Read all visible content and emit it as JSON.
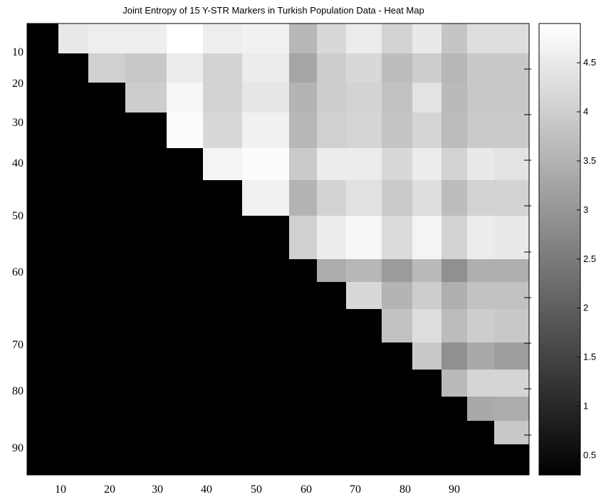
{
  "chart_data": {
    "type": "heatmap",
    "title": "Joint Entropy of 15 Y-STR Markers in Turkish Population Data - Heat Map",
    "xlabel": "",
    "ylabel": "",
    "colormap": "gray",
    "background_color": "#000000",
    "x_ticks": [
      "10",
      "20",
      "30",
      "40",
      "50",
      "60",
      "70",
      "80",
      "90"
    ],
    "y_ticks": [
      "10",
      "20",
      "30",
      "40",
      "50",
      "60",
      "70",
      "80",
      "90"
    ],
    "colorbar": {
      "range": [
        0.3,
        4.9
      ],
      "ticks": [
        "0.5",
        "1",
        "1.5",
        "2",
        "2.5",
        "3",
        "3.5",
        "4",
        "4.5"
      ],
      "tick_values": [
        0.5,
        1,
        1.5,
        2,
        2.5,
        3,
        3.5,
        4,
        4.5
      ]
    },
    "matrix": [
      [
        null,
        4.5,
        4.6,
        4.6,
        4.9,
        4.6,
        4.65,
        3.6,
        4.2,
        4.55,
        4.1,
        4.5,
        3.85,
        4.3,
        4.3
      ],
      [
        null,
        null,
        4.05,
        3.9,
        4.55,
        4.1,
        4.55,
        3.3,
        4.0,
        4.2,
        3.7,
        4.0,
        3.6,
        3.9,
        3.9
      ],
      [
        null,
        null,
        null,
        4.0,
        4.75,
        4.1,
        4.45,
        3.55,
        4.0,
        4.1,
        3.8,
        4.4,
        3.65,
        3.9,
        3.9
      ],
      [
        null,
        null,
        null,
        null,
        4.85,
        4.2,
        4.65,
        3.6,
        4.05,
        4.15,
        3.85,
        4.15,
        3.7,
        3.95,
        3.95
      ],
      [
        null,
        null,
        null,
        null,
        null,
        4.7,
        4.85,
        3.95,
        4.55,
        4.55,
        4.2,
        4.55,
        4.1,
        4.5,
        4.4
      ],
      [
        null,
        null,
        null,
        null,
        null,
        null,
        4.65,
        3.55,
        4.1,
        4.35,
        3.95,
        4.3,
        3.7,
        4.1,
        4.1
      ],
      [
        null,
        null,
        null,
        null,
        null,
        null,
        null,
        4.05,
        4.55,
        4.75,
        4.25,
        4.7,
        4.1,
        4.55,
        4.5
      ],
      [
        null,
        null,
        null,
        null,
        null,
        null,
        null,
        null,
        3.4,
        3.6,
        3.1,
        3.65,
        2.9,
        3.45,
        3.45
      ],
      [
        null,
        null,
        null,
        null,
        null,
        null,
        null,
        null,
        null,
        4.2,
        3.55,
        4.0,
        3.45,
        3.8,
        3.8
      ],
      [
        null,
        null,
        null,
        null,
        null,
        null,
        null,
        null,
        null,
        null,
        3.8,
        4.3,
        3.7,
        4.0,
        3.9
      ],
      [
        null,
        null,
        null,
        null,
        null,
        null,
        null,
        null,
        null,
        null,
        null,
        3.9,
        2.9,
        3.35,
        3.15
      ],
      [
        null,
        null,
        null,
        null,
        null,
        null,
        null,
        null,
        null,
        null,
        null,
        null,
        3.65,
        4.15,
        4.15
      ],
      [
        null,
        null,
        null,
        null,
        null,
        null,
        null,
        null,
        null,
        null,
        null,
        null,
        null,
        3.35,
        3.4
      ],
      [
        null,
        null,
        null,
        null,
        null,
        null,
        null,
        null,
        null,
        null,
        null,
        null,
        null,
        null,
        3.9
      ]
    ]
  }
}
